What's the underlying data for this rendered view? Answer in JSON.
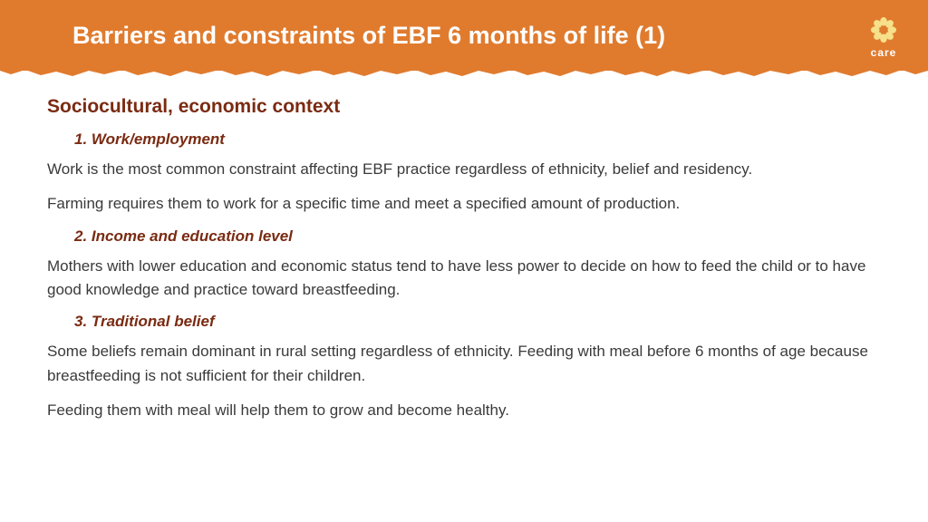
{
  "header": {
    "title": "Barriers and constraints of EBF 6 months of life (1)",
    "logo_text": "care",
    "bg_color": "#e07b2e",
    "title_color": "#ffffff"
  },
  "content": {
    "section_heading": "Sociocultural, economic context",
    "heading_color": "#7a2b12",
    "body_color": "#3a3a3a",
    "items": [
      {
        "heading": "1. Work/employment",
        "paragraphs": [
          "Work is the most common constraint affecting EBF practice regardless of ethnicity, belief and residency.",
          "Farming requires them to work for a specific time and meet a specified amount of production."
        ]
      },
      {
        "heading": "2. Income and education level",
        "paragraphs": [
          "Mothers with lower education and economic status tend to have less power to decide on how to feed the child or to have good knowledge and practice toward breastfeeding."
        ]
      },
      {
        "heading": "3. Traditional belief",
        "paragraphs": [
          "Some beliefs remain dominant in rural setting regardless of ethnicity. Feeding with meal before 6 months of age because breastfeeding is not sufficient for their children.",
          "Feeding them with meal will help them to grow and become healthy."
        ]
      }
    ]
  }
}
